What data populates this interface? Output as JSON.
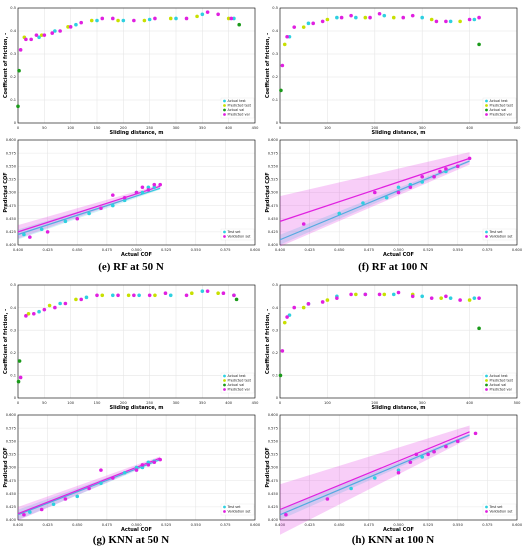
{
  "captions": [
    "(e) RF at 50 N",
    "(f) RF at 100 N",
    "(g) KNN at 50 N",
    "(h) KNN at 100 N"
  ],
  "colors": {
    "actual_test": "#2ed0e0",
    "predicted_test": "#c8e000",
    "actual_val": "#1a9a1a",
    "predicted_val": "#e020e0",
    "test_line": "#2ed0e0",
    "val_line": "#e020e0",
    "axes": "#000000",
    "grid": "#e6e6e6"
  },
  "chart_data": [
    {
      "type": "scatter",
      "panel": "e-top",
      "xlabel": "Sliding distance, m",
      "ylabel": "Coefficient of friction, -",
      "xlim": [
        0,
        450
      ],
      "ylim": [
        0,
        0.55
      ],
      "xticks": [
        "0",
        "50",
        "100",
        "150",
        "200",
        "250",
        "300",
        "350",
        "400",
        "450"
      ],
      "yticks": [
        "0",
        "0.1",
        "0.2",
        "0.3",
        "0.4",
        "0.5"
      ],
      "legend": [
        "Actual test",
        "Predicted test",
        "Actual val",
        "Predicted val"
      ],
      "legend_position": "lower-right",
      "series": [
        {
          "name": "Actual test",
          "x": [
            40,
            70,
            110,
            150,
            200,
            250,
            300,
            350,
            410
          ],
          "y": [
            0.41,
            0.44,
            0.47,
            0.49,
            0.49,
            0.495,
            0.5,
            0.52,
            0.5
          ]
        },
        {
          "name": "Predicted test",
          "x": [
            12,
            45,
            95,
            140,
            190,
            240,
            290,
            340,
            400
          ],
          "y": [
            0.41,
            0.42,
            0.46,
            0.49,
            0.49,
            0.49,
            0.5,
            0.51,
            0.5
          ]
        },
        {
          "name": "Actual val",
          "x": [
            0,
            2,
            420
          ],
          "y": [
            0.08,
            0.25,
            0.47
          ]
        },
        {
          "name": "Predicted val",
          "x": [
            5,
            15,
            25,
            35,
            50,
            65,
            80,
            100,
            120,
            160,
            180,
            220,
            260,
            320,
            360,
            380,
            405
          ],
          "y": [
            0.35,
            0.4,
            0.4,
            0.42,
            0.42,
            0.43,
            0.44,
            0.46,
            0.48,
            0.5,
            0.5,
            0.49,
            0.5,
            0.5,
            0.53,
            0.52,
            0.5
          ]
        }
      ]
    },
    {
      "type": "scatter",
      "panel": "e-bottom",
      "xlabel": "Actual COF",
      "ylabel": "Predicted COF",
      "xlim": [
        0.4,
        0.6
      ],
      "ylim": [
        0.4,
        0.6
      ],
      "xticks": [
        "0.400",
        "0.425",
        "0.450",
        "0.475",
        "0.500",
        "0.525",
        "0.550",
        "0.575",
        "0.600"
      ],
      "yticks": [
        "0.400",
        "0.425",
        "0.450",
        "0.475",
        "0.500",
        "0.525",
        "0.550",
        "0.575",
        "0.600"
      ],
      "legend": [
        "Test set",
        "Validation set"
      ],
      "legend_position": "lower-right",
      "fit_lines": [
        {
          "name": "Test set",
          "x": [
            0.4,
            0.52
          ],
          "y": [
            0.42,
            0.508
          ]
        },
        {
          "name": "Validation set",
          "x": [
            0.4,
            0.52
          ],
          "y": [
            0.425,
            0.512
          ]
        }
      ],
      "series": [
        {
          "name": "Test set",
          "x": [
            0.405,
            0.42,
            0.44,
            0.46,
            0.48,
            0.49,
            0.5,
            0.505,
            0.51,
            0.515
          ],
          "y": [
            0.42,
            0.43,
            0.445,
            0.46,
            0.475,
            0.485,
            0.5,
            0.5,
            0.51,
            0.51
          ]
        },
        {
          "name": "Validation set",
          "x": [
            0.41,
            0.425,
            0.45,
            0.47,
            0.48,
            0.49,
            0.5,
            0.505,
            0.51,
            0.515,
            0.52
          ],
          "y": [
            0.415,
            0.425,
            0.45,
            0.47,
            0.495,
            0.49,
            0.5,
            0.51,
            0.505,
            0.515,
            0.515
          ]
        }
      ]
    },
    {
      "type": "scatter",
      "panel": "f-top",
      "xlabel": "Sliding distance, m",
      "ylabel": "Coefficient of friction, -",
      "xlim": [
        0,
        500
      ],
      "ylim": [
        0,
        0.6
      ],
      "xticks": [
        "0",
        "100",
        "200",
        "300",
        "400",
        "500"
      ],
      "yticks": [
        "0",
        "0.1",
        "0.2",
        "0.3",
        "0.4",
        "0.5"
      ],
      "legend": [
        "Actual test",
        "Predicted test",
        "Actual val",
        "Predicted val"
      ],
      "legend_position": "lower-right",
      "series": [
        {
          "name": "Actual test",
          "x": [
            20,
            60,
            120,
            160,
            220,
            300,
            360,
            410
          ],
          "y": [
            0.45,
            0.52,
            0.55,
            0.55,
            0.56,
            0.55,
            0.53,
            0.54
          ]
        },
        {
          "name": "Predicted test",
          "x": [
            10,
            50,
            100,
            180,
            240,
            320,
            380
          ],
          "y": [
            0.41,
            0.5,
            0.54,
            0.55,
            0.55,
            0.54,
            0.53
          ]
        },
        {
          "name": "Actual val",
          "x": [
            2,
            420
          ],
          "y": [
            0.17,
            0.41
          ]
        },
        {
          "name": "Predicted val",
          "x": [
            5,
            15,
            30,
            70,
            90,
            130,
            150,
            190,
            210,
            260,
            280,
            330,
            350,
            400,
            420
          ],
          "y": [
            0.3,
            0.45,
            0.5,
            0.52,
            0.53,
            0.55,
            0.56,
            0.55,
            0.57,
            0.55,
            0.56,
            0.53,
            0.53,
            0.54,
            0.55
          ]
        }
      ]
    },
    {
      "type": "scatter",
      "panel": "f-bottom",
      "xlabel": "Actual COF",
      "ylabel": "Predicted COF",
      "xlim": [
        0.4,
        0.6
      ],
      "ylim": [
        0.4,
        0.6
      ],
      "xticks": [
        "0.400",
        "0.425",
        "0.450",
        "0.475",
        "0.500",
        "0.525",
        "0.550",
        "0.575",
        "0.600"
      ],
      "yticks": [
        "0.400",
        "0.425",
        "0.450",
        "0.475",
        "0.500",
        "0.525",
        "0.550",
        "0.575",
        "0.600"
      ],
      "legend": [
        "Test set",
        "Validation set"
      ],
      "legend_position": "lower-right",
      "fit_lines": [
        {
          "name": "Test set",
          "x": [
            0.4,
            0.56
          ],
          "y": [
            0.41,
            0.56
          ]
        },
        {
          "name": "Validation set",
          "x": [
            0.4,
            0.56
          ],
          "y": [
            0.445,
            0.565
          ]
        }
      ],
      "series": [
        {
          "name": "Test set",
          "x": [
            0.45,
            0.47,
            0.49,
            0.5,
            0.51,
            0.52,
            0.53,
            0.54,
            0.55
          ],
          "y": [
            0.46,
            0.48,
            0.49,
            0.51,
            0.515,
            0.52,
            0.53,
            0.54,
            0.55
          ]
        },
        {
          "name": "Validation set",
          "x": [
            0.42,
            0.48,
            0.5,
            0.51,
            0.52,
            0.53,
            0.535,
            0.54,
            0.55,
            0.56
          ],
          "y": [
            0.44,
            0.5,
            0.5,
            0.51,
            0.53,
            0.53,
            0.54,
            0.545,
            0.55,
            0.565
          ]
        }
      ]
    },
    {
      "type": "scatter",
      "panel": "g-top",
      "xlabel": "Sliding distance, m",
      "ylabel": "Coefficient of friction, -",
      "xlim": [
        0,
        450
      ],
      "ylim": [
        0,
        0.55
      ],
      "xticks": [
        "0",
        "50",
        "100",
        "150",
        "200",
        "250",
        "300",
        "350",
        "400",
        "450"
      ],
      "yticks": [
        "0",
        "0.1",
        "0.2",
        "0.3",
        "0.4",
        "0.5"
      ],
      "legend": [
        "Actual test",
        "Predicted test",
        "Actual val",
        "Predicted val"
      ],
      "legend_position": "lower-right",
      "series": [
        {
          "name": "Actual test",
          "x": [
            40,
            80,
            130,
            180,
            230,
            290,
            350,
            410
          ],
          "y": [
            0.42,
            0.46,
            0.49,
            0.5,
            0.5,
            0.5,
            0.52,
            0.5
          ]
        },
        {
          "name": "Predicted test",
          "x": [
            20,
            60,
            110,
            160,
            210,
            260,
            330,
            380
          ],
          "y": [
            0.41,
            0.45,
            0.48,
            0.5,
            0.5,
            0.5,
            0.51,
            0.51
          ]
        },
        {
          "name": "Actual val",
          "x": [
            1,
            3,
            415
          ],
          "y": [
            0.08,
            0.18,
            0.48
          ]
        },
        {
          "name": "Predicted val",
          "x": [
            5,
            15,
            30,
            50,
            70,
            90,
            120,
            150,
            190,
            220,
            250,
            280,
            320,
            360,
            390,
            410
          ],
          "y": [
            0.1,
            0.4,
            0.41,
            0.43,
            0.44,
            0.46,
            0.48,
            0.5,
            0.5,
            0.5,
            0.5,
            0.51,
            0.5,
            0.52,
            0.51,
            0.5
          ]
        }
      ]
    },
    {
      "type": "scatter",
      "panel": "g-bottom",
      "xlabel": "Actual COF",
      "ylabel": "Predicted COF",
      "xlim": [
        0.4,
        0.6
      ],
      "ylim": [
        0.4,
        0.6
      ],
      "xticks": [
        "0.400",
        "0.425",
        "0.450",
        "0.475",
        "0.500",
        "0.525",
        "0.550",
        "0.575",
        "0.600"
      ],
      "yticks": [
        "0.400",
        "0.425",
        "0.450",
        "0.475",
        "0.500",
        "0.525",
        "0.550",
        "0.575",
        "0.600"
      ],
      "legend": [
        "Test set",
        "Validation set"
      ],
      "legend_position": "lower-right",
      "fit_lines": [
        {
          "name": "Test set",
          "x": [
            0.4,
            0.52
          ],
          "y": [
            0.41,
            0.515
          ]
        },
        {
          "name": "Validation set",
          "x": [
            0.4,
            0.52
          ],
          "y": [
            0.412,
            0.518
          ]
        }
      ],
      "series": [
        {
          "name": "Test set",
          "x": [
            0.41,
            0.43,
            0.45,
            0.47,
            0.49,
            0.5,
            0.505,
            0.51,
            0.515
          ],
          "y": [
            0.415,
            0.43,
            0.445,
            0.47,
            0.49,
            0.5,
            0.5,
            0.51,
            0.512
          ]
        },
        {
          "name": "Validation set",
          "x": [
            0.405,
            0.42,
            0.44,
            0.46,
            0.47,
            0.48,
            0.5,
            0.505,
            0.51,
            0.515,
            0.52
          ],
          "y": [
            0.41,
            0.42,
            0.44,
            0.46,
            0.495,
            0.48,
            0.495,
            0.505,
            0.505,
            0.51,
            0.515
          ]
        }
      ]
    },
    {
      "type": "scatter",
      "panel": "h-top",
      "xlabel": "Sliding distance, m",
      "ylabel": "Coefficient of friction, -",
      "xlim": [
        0,
        500
      ],
      "ylim": [
        0,
        0.6
      ],
      "xticks": [
        "0",
        "100",
        "200",
        "300",
        "400",
        "500"
      ],
      "yticks": [
        "0",
        "0.1",
        "0.2",
        "0.3",
        "0.4",
        "0.5"
      ],
      "legend": [
        "Actual test",
        "Predicted test",
        "Actual val",
        "Predicted val"
      ],
      "legend_position": "lower-right",
      "series": [
        {
          "name": "Actual test",
          "x": [
            20,
            60,
            120,
            180,
            240,
            300,
            360,
            410
          ],
          "y": [
            0.44,
            0.5,
            0.54,
            0.55,
            0.55,
            0.54,
            0.53,
            0.53
          ]
        },
        {
          "name": "Predicted test",
          "x": [
            10,
            50,
            100,
            160,
            220,
            280,
            340,
            400
          ],
          "y": [
            0.4,
            0.48,
            0.52,
            0.55,
            0.55,
            0.55,
            0.53,
            0.52
          ]
        },
        {
          "name": "Actual val",
          "x": [
            1,
            420
          ],
          "y": [
            0.12,
            0.37
          ]
        },
        {
          "name": "Predicted val",
          "x": [
            5,
            15,
            30,
            60,
            90,
            120,
            150,
            180,
            210,
            250,
            280,
            320,
            350,
            380,
            420
          ],
          "y": [
            0.25,
            0.43,
            0.48,
            0.5,
            0.51,
            0.53,
            0.55,
            0.55,
            0.55,
            0.56,
            0.54,
            0.53,
            0.54,
            0.52,
            0.53
          ]
        }
      ]
    },
    {
      "type": "scatter",
      "panel": "h-bottom",
      "xlabel": "Actual COF",
      "ylabel": "Predicted COF",
      "xlim": [
        0.4,
        0.6
      ],
      "ylim": [
        0.4,
        0.6
      ],
      "xticks": [
        "0.400",
        "0.425",
        "0.450",
        "0.475",
        "0.500",
        "0.525",
        "0.550",
        "0.575",
        "0.600"
      ],
      "yticks": [
        "0.400",
        "0.425",
        "0.450",
        "0.475",
        "0.500",
        "0.525",
        "0.550",
        "0.575",
        "0.600"
      ],
      "legend": [
        "Test set",
        "Validation set"
      ],
      "legend_position": "lower-right",
      "fit_lines": [
        {
          "name": "Test set",
          "x": [
            0.4,
            0.56
          ],
          "y": [
            0.41,
            0.562
          ]
        },
        {
          "name": "Validation set",
          "x": [
            0.4,
            0.56
          ],
          "y": [
            0.42,
            0.568
          ]
        }
      ],
      "series": [
        {
          "name": "Test set",
          "x": [
            0.46,
            0.48,
            0.5,
            0.51,
            0.52,
            0.53,
            0.54,
            0.55
          ],
          "y": [
            0.46,
            0.48,
            0.495,
            0.51,
            0.52,
            0.53,
            0.54,
            0.55
          ]
        },
        {
          "name": "Validation set",
          "x": [
            0.405,
            0.44,
            0.5,
            0.51,
            0.515,
            0.525,
            0.53,
            0.54,
            0.55,
            0.565
          ],
          "y": [
            0.41,
            0.44,
            0.49,
            0.51,
            0.525,
            0.525,
            0.53,
            0.54,
            0.55,
            0.565
          ]
        }
      ]
    }
  ]
}
